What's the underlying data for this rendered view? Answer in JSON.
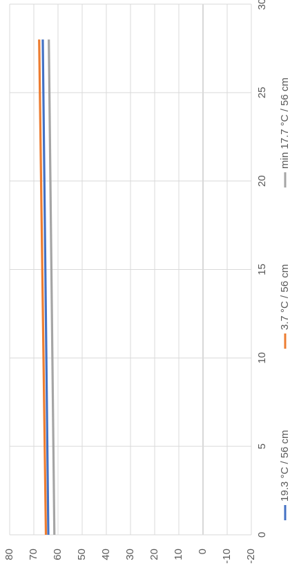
{
  "chart_data": {
    "type": "line",
    "orientation": "rotated-90-clockwise",
    "x": [
      0,
      28
    ],
    "xlim": [
      0,
      30
    ],
    "xticks": [
      "0",
      "5",
      "10",
      "15",
      "20",
      "25",
      "30"
    ],
    "ylim": [
      -20,
      80
    ],
    "yticks": [
      "80",
      "70",
      "60",
      "50",
      "40",
      "30",
      "20",
      "10",
      "0",
      "-10",
      "-20"
    ],
    "grid": true,
    "legend_position": "bottom",
    "series": [
      {
        "name": "19.3 °C / 56 cm",
        "values": [
          64,
          66.3
        ],
        "color": "#4472c4"
      },
      {
        "name": "3.7 °C / 56 cm",
        "values": [
          65,
          67.8
        ],
        "color": "#ed7d31"
      },
      {
        "name": "min 17.7 °C / 56 cm",
        "values": [
          61.5,
          63.8
        ],
        "color": "#a5a5a5"
      }
    ],
    "title": "",
    "xlabel": "",
    "ylabel": ""
  }
}
